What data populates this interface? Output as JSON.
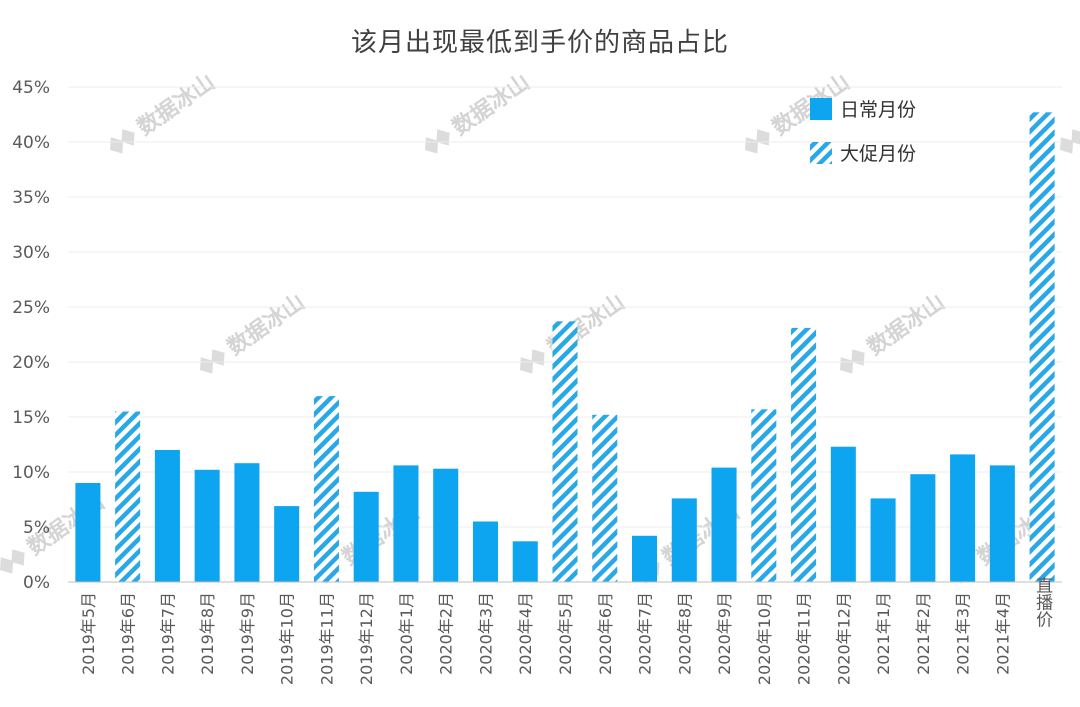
{
  "chart_data": {
    "type": "bar",
    "title": "该月出现最低到手价的商品占比",
    "xlabel": "",
    "ylabel": "",
    "ylim": [
      0,
      45
    ],
    "y_ticks": [
      "0%",
      "5%",
      "10%",
      "15%",
      "20%",
      "25%",
      "30%",
      "35%",
      "40%",
      "45%"
    ],
    "grid": true,
    "legend_position": "top-right",
    "categories": [
      "2019年5月",
      "2019年6月",
      "2019年7月",
      "2019年8月",
      "2019年9月",
      "2019年10月",
      "2019年11月",
      "2019年12月",
      "2020年1月",
      "2020年2月",
      "2020年3月",
      "2020年4月",
      "2020年5月",
      "2020年6月",
      "2020年7月",
      "2020年8月",
      "2020年9月",
      "2020年10月",
      "2020年11月",
      "2020年12月",
      "2021年1月",
      "2021年2月",
      "2021年3月",
      "2021年4月",
      "直播价"
    ],
    "values": [
      9.0,
      15.5,
      12.0,
      10.2,
      10.8,
      6.9,
      16.9,
      8.2,
      10.6,
      10.3,
      5.5,
      3.7,
      23.7,
      15.2,
      4.2,
      7.6,
      10.4,
      15.7,
      23.1,
      12.3,
      7.6,
      9.8,
      11.6,
      10.6,
      42.7
    ],
    "series_type": [
      "日常月份",
      "大促月份",
      "日常月份",
      "日常月份",
      "日常月份",
      "日常月份",
      "大促月份",
      "日常月份",
      "日常月份",
      "日常月份",
      "日常月份",
      "日常月份",
      "大促月份",
      "大促月份",
      "日常月份",
      "日常月份",
      "日常月份",
      "大促月份",
      "大促月份",
      "日常月份",
      "日常月份",
      "日常月份",
      "日常月份",
      "日常月份",
      "大促月份"
    ],
    "legend": [
      {
        "name": "日常月份",
        "style": "solid"
      },
      {
        "name": "大促月份",
        "style": "hatched"
      }
    ],
    "colors": {
      "solid": "#0ea5f0",
      "hatch": "#29a8e8",
      "grid": "#ececec",
      "axis": "#bfbfbf"
    }
  },
  "watermark": "数据冰山"
}
